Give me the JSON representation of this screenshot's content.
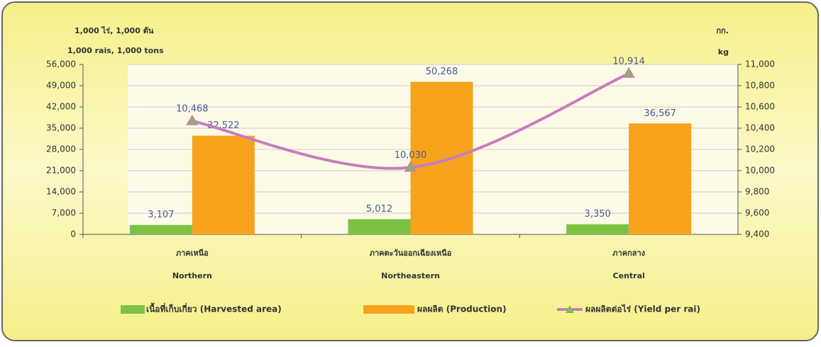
{
  "chart_data": {
    "type": "bar-line",
    "y_axis_label": [
      "1,000 ไร่,  1,000 ตัน",
      "1,000 rais,  1,000 tons"
    ],
    "y2_axis_label": [
      "กก.",
      "kg"
    ],
    "categories": [
      [
        "ภาคเหนือ",
        "Northern"
      ],
      [
        "ภาคตะวันออกเฉียงเหนือ",
        "Northeastern"
      ],
      [
        "ภาคกลาง",
        "Central"
      ]
    ],
    "ylim": [
      0,
      56000
    ],
    "yticks": [
      0,
      {
        "value": 7000,
        "label": "7,000"
      },
      {
        "value": 14000,
        "label": "14,000"
      },
      {
        "value": 21000,
        "label": "21,000"
      },
      {
        "value": 28000,
        "label": "28,000"
      },
      {
        "value": 35000,
        "label": "35,000"
      },
      {
        "value": 42000,
        "label": "42,000"
      },
      {
        "value": 49000,
        "label": "49,000"
      },
      {
        "value": 56000,
        "label": "56,000"
      }
    ],
    "y2lim": [
      9400,
      11000
    ],
    "y2ticks": [
      {
        "value": 9400,
        "label": "9,400"
      },
      {
        "value": 9600,
        "label": "9,600"
      },
      {
        "value": 9800,
        "label": "9,800"
      },
      {
        "value": 10000,
        "label": "10,000"
      },
      {
        "value": 10200,
        "label": "10,200"
      },
      {
        "value": 10400,
        "label": "10,400"
      },
      {
        "value": 10600,
        "label": "10,600"
      },
      {
        "value": 10800,
        "label": "10,800"
      },
      {
        "value": 11000,
        "label": "11,000"
      }
    ],
    "grid": true,
    "series": [
      {
        "name": "เนื้อที่เก็บเกี่ยว (Harvested area)",
        "type": "bar",
        "color": "#7cc242",
        "values": [
          3107,
          5012,
          3350
        ],
        "value_labels": [
          "3,107",
          "5,012",
          "3,350"
        ]
      },
      {
        "name": "ผลผลิต  (Production)",
        "type": "bar",
        "color": "#f7a21b",
        "values": [
          32522,
          50268,
          36567
        ],
        "value_labels": [
          "32,522",
          "50,268",
          "36,567"
        ]
      },
      {
        "name": "ผลผลิตต่อไร่ (Yield per rai)",
        "type": "line",
        "axis": "y2",
        "color": "#c77dbd",
        "marker_color": "#7cc242",
        "values": [
          10468,
          10030,
          10914
        ],
        "value_labels": [
          "10,468",
          "10,030",
          "10,914"
        ]
      }
    ]
  }
}
